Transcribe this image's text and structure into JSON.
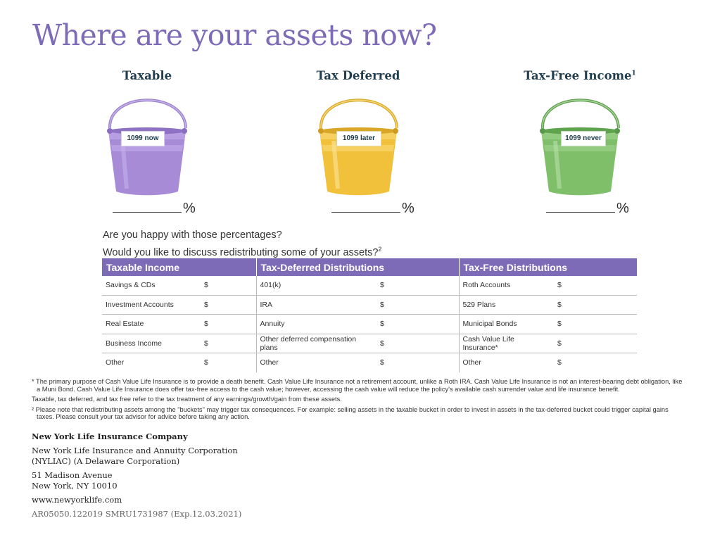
{
  "title": "Where are your assets now?",
  "buckets": [
    {
      "title": "Taxable",
      "title_sup": "",
      "tag": "1099 now",
      "percent": "%",
      "color": "#a78bd6"
    },
    {
      "title": "Tax Deferred",
      "title_sup": "",
      "tag": "1099 later",
      "percent": "%",
      "color": "#f1c13c"
    },
    {
      "title": "Tax-Free Income",
      "title_sup": "1",
      "tag": "1099 never",
      "percent": "%",
      "color": "#7fbf6a"
    }
  ],
  "questions": {
    "q1": "Are you happy with those percentages?",
    "q2": "Would you like to discuss redistributing some of your assets?",
    "q2_sup": "2"
  },
  "table": {
    "headers": [
      "Taxable Income",
      "Tax-Deferred Distributions",
      "Tax-Free Distributions"
    ],
    "currency": "$",
    "rows": [
      [
        "Savings & CDs",
        "401(k)",
        "Roth Accounts"
      ],
      [
        "Investment Accounts",
        "IRA",
        "529 Plans"
      ],
      [
        "Real Estate",
        "Annuity",
        "Municipal Bonds"
      ],
      [
        "Business Income",
        "Other deferred compensation plans",
        "Cash Value Life Insurance*"
      ],
      [
        "Other",
        "Other",
        "Other"
      ]
    ]
  },
  "notes": {
    "n1": "* The primary purpose of Cash Value Life Insurance is to provide a death benefit. Cash Value Life Insurance not a retirement account, unlike a Roth IRA. Cash Value Life Insurance is not an interest-bearing debt obligation, like a Muni Bond. Cash Value Life Insurance does offer tax-free access to the cash value; however, accessing the cash value will reduce the policy's available cash surrender value and life insurance benefit.",
    "n2": "Taxable, tax deferred, and tax free refer to the tax treatment of any earnings/growth/gain from these assets.",
    "n3": "² Please note that redistributing assets among the \"buckets\" may trigger tax consequences. For example: selling assets in the taxable bucket in order to invest in assets in the tax-deferred bucket could trigger capital gains taxes. Please consult your tax advisor for advice before taking any action."
  },
  "company": {
    "name": "New York Life Insurance Company",
    "sub1": "New York Life Insurance and Annuity Corporation",
    "sub2": "(NYLIAC) (A Delaware Corporation)",
    "addr1": "51 Madison Avenue",
    "addr2": "New York, NY 10010",
    "web": "www.newyorklife.com",
    "code": "AR05050.122019 SMRU1731987 (Exp.12.03.2021)"
  }
}
